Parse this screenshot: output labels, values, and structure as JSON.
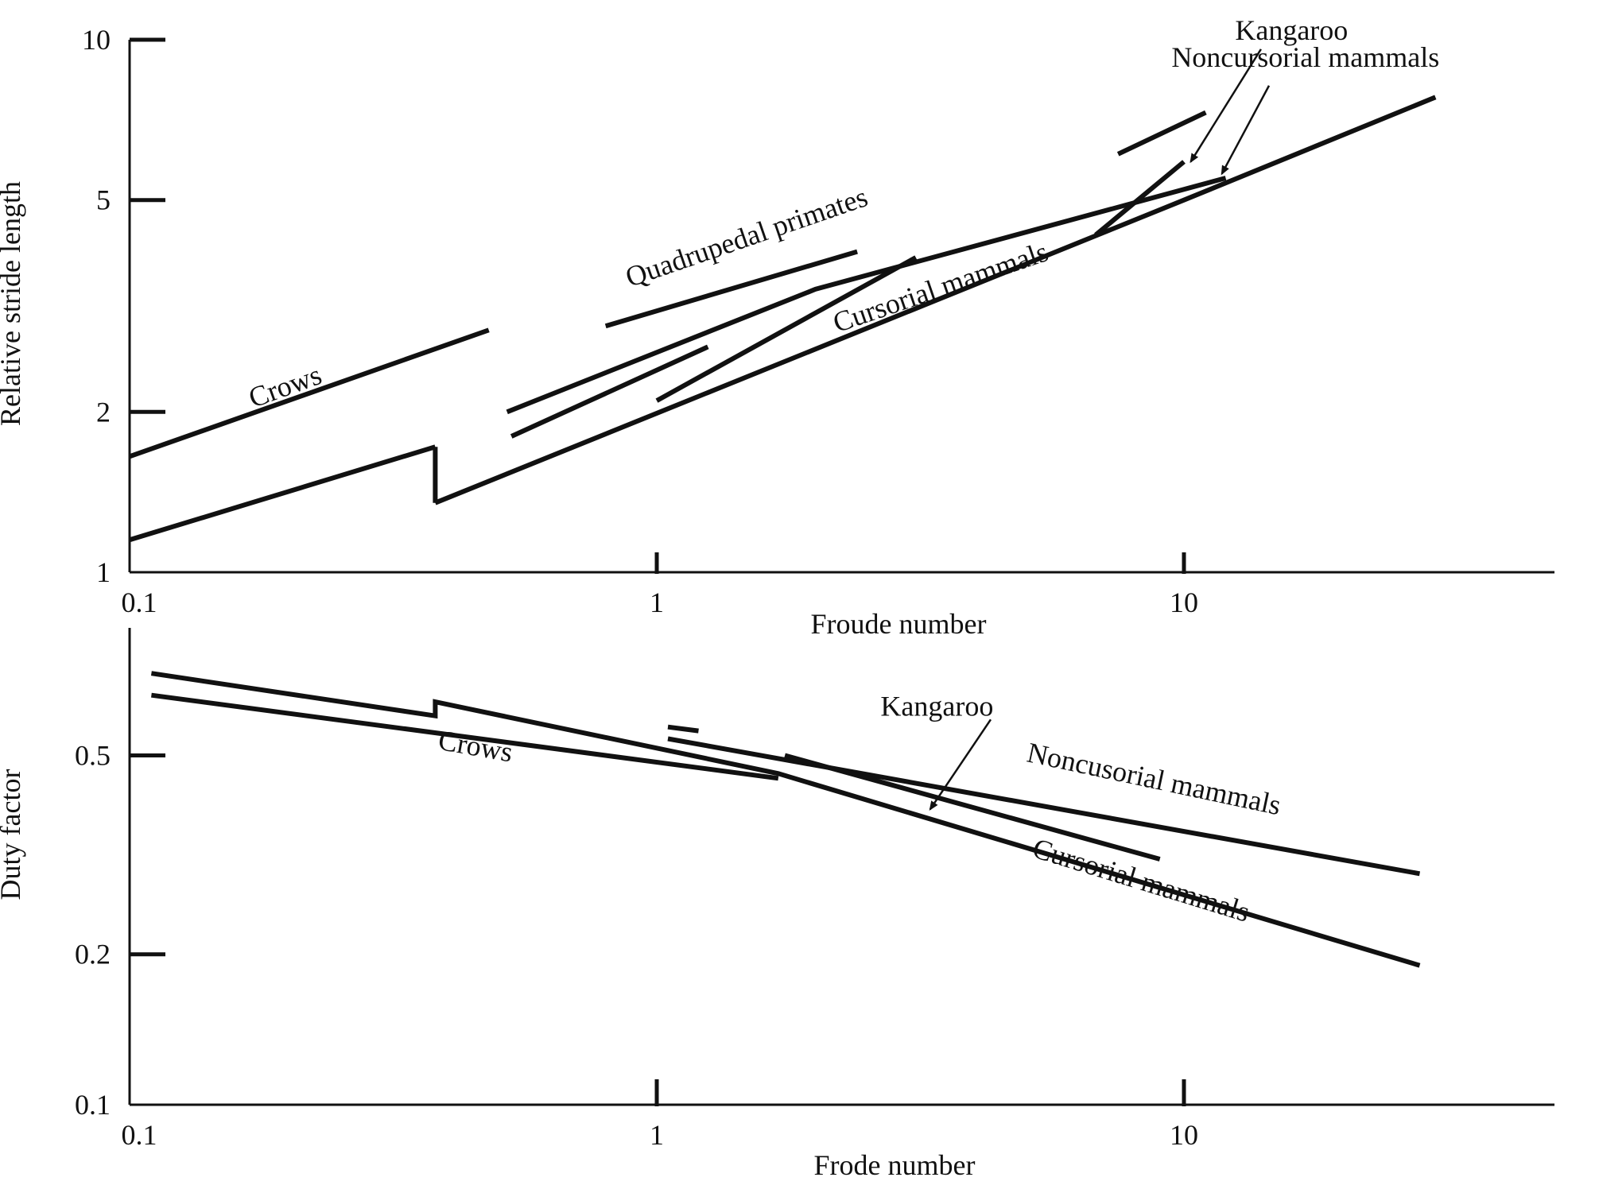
{
  "chart_data": [
    {
      "type": "line",
      "xscale": "log",
      "yscale": "log",
      "xlim": [
        0.1,
        30
      ],
      "ylim": [
        1,
        10
      ],
      "xlabel": "Froude number",
      "ylabel": "Relative stride length",
      "x_ticks": [
        {
          "value": 0.1,
          "label": "0.1"
        },
        {
          "value": 1,
          "label": "1"
        },
        {
          "value": 10,
          "label": "10"
        }
      ],
      "y_ticks": [
        {
          "value": 1,
          "label": "1"
        },
        {
          "value": 2,
          "label": "2"
        },
        {
          "value": 5,
          "label": "5"
        },
        {
          "value": 10,
          "label": "10"
        }
      ],
      "series": [
        {
          "name": "Crows",
          "x": [
            0.1,
            0.48
          ],
          "y": [
            1.65,
            2.85
          ]
        },
        {
          "name": "Quadrupedal primates",
          "x": [
            0.8,
            2.4
          ],
          "y": [
            2.9,
            4.0
          ]
        },
        {
          "name": "Quadrupedal primates",
          "x": [
            7.5,
            11
          ],
          "y": [
            6.1,
            7.3
          ]
        },
        {
          "name": "Noncursorial mammals",
          "x": [
            0.52,
            2.0,
            12
          ],
          "y": [
            2.0,
            3.4,
            5.5
          ]
        },
        {
          "name": "Noncursorial mammals",
          "x": [
            0.53,
            1.25
          ],
          "y": [
            1.8,
            2.65
          ]
        },
        {
          "name": "Kangaroo",
          "x": [
            6.8,
            10
          ],
          "y": [
            4.3,
            5.9
          ]
        },
        {
          "name": "Cursorial mammals",
          "x": [
            0.1,
            0.38
          ],
          "y": [
            1.15,
            1.72
          ]
        },
        {
          "name": "Cursorial mammals",
          "x": [
            0.38,
            0.38
          ],
          "y": [
            1.72,
            1.35
          ]
        },
        {
          "name": "Cursorial mammals",
          "x": [
            0.38,
            10,
            30
          ],
          "y": [
            1.35,
            5.0,
            7.8
          ]
        },
        {
          "name": "Cursorial mammals",
          "x": [
            1.0,
            3.1
          ],
          "y": [
            2.1,
            3.9
          ]
        }
      ],
      "annotations": [
        {
          "text": "Crows",
          "x": 0.2,
          "y": 2.15,
          "rotate": -20
        },
        {
          "text": "Quadrupedal primates",
          "x": 1.5,
          "y": 4.1,
          "rotate": -19
        },
        {
          "text": "Cursorial mammals",
          "x": 3.5,
          "y": 3.3,
          "rotate": -19
        },
        {
          "text": "Kangaroo",
          "x": 16,
          "y": 10
        },
        {
          "text": "Noncursorial mammals",
          "x": 17,
          "y": 8.9
        },
        {
          "arrow": "Kangaroo",
          "from": [
            14,
            9.6
          ],
          "to": [
            10.3,
            5.9
          ]
        },
        {
          "arrow": "Noncursorial mammals",
          "from": [
            14.5,
            8.2
          ],
          "to": [
            11.8,
            5.6
          ]
        }
      ]
    },
    {
      "type": "line",
      "xscale": "log",
      "yscale": "log",
      "xlim": [
        0.1,
        30
      ],
      "ylim": [
        0.1,
        0.9
      ],
      "xlabel": "Frode number",
      "ylabel": "Duty factor",
      "x_ticks": [
        {
          "value": 0.1,
          "label": "0.1"
        },
        {
          "value": 1,
          "label": "1"
        },
        {
          "value": 10,
          "label": "10"
        }
      ],
      "y_ticks": [
        {
          "value": 0.1,
          "label": "0.1"
        },
        {
          "value": 0.2,
          "label": "0.2"
        },
        {
          "value": 0.5,
          "label": "0.5"
        }
      ],
      "series": [
        {
          "name": "Crows",
          "x": [
            0.11,
            1.7
          ],
          "y": [
            0.66,
            0.45
          ]
        },
        {
          "name": "Cursorial mammals",
          "x": [
            0.11,
            0.38,
            0.38,
            1.7,
            28
          ],
          "y": [
            0.73,
            0.6,
            0.64,
            0.46,
            0.19
          ]
        },
        {
          "name": "Noncusorial mammals",
          "x": [
            1.05,
            28
          ],
          "y": [
            0.54,
            0.29
          ]
        },
        {
          "name": "Noncusorial mammals",
          "x": [
            1.05,
            1.2
          ],
          "y": [
            0.57,
            0.56
          ]
        },
        {
          "name": "Kangaroo",
          "x": [
            1.75,
            9
          ],
          "y": [
            0.5,
            0.31
          ]
        }
      ],
      "annotations": [
        {
          "text": "Crows",
          "x": 0.45,
          "y": 0.5,
          "rotate": 10
        },
        {
          "text": "Kangaroo",
          "x": 3.4,
          "y": 0.6
        },
        {
          "text": "Noncusorial mammals",
          "x": 8.7,
          "y": 0.43,
          "rotate": 12
        },
        {
          "text": "Cursorial mammals",
          "x": 8.2,
          "y": 0.27,
          "rotate": 17
        },
        {
          "arrow": "Kangaroo",
          "from": [
            4.3,
            0.59
          ],
          "to": [
            3.3,
            0.39
          ]
        }
      ]
    }
  ]
}
